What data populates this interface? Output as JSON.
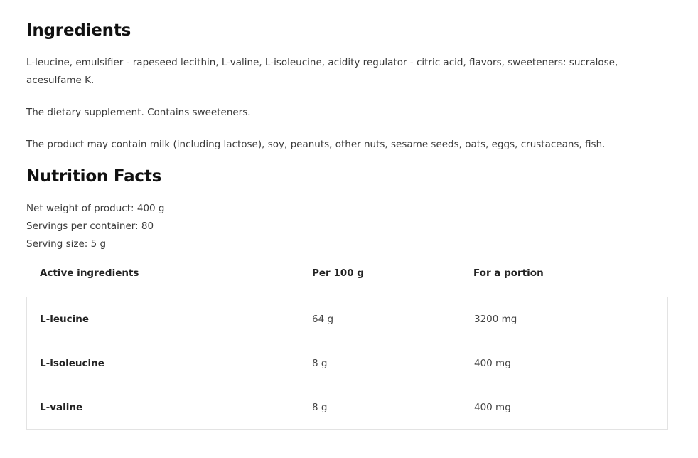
{
  "ingredients": {
    "title": "Ingredients",
    "paragraphs": [
      "L-leucine, emulsifier - rapeseed lecithin, L-valine, L-isoleucine, acidity regulator - citric acid, flavors, sweeteners: sucralose, acesulfame K.",
      "The dietary supplement. Contains sweeteners.",
      "The product may contain milk (including lactose), soy, peanuts, other nuts, sesame seeds, oats, eggs, crustaceans, fish."
    ]
  },
  "nutrition": {
    "title": "Nutrition Facts",
    "meta": [
      "Net weight of product: 400 g",
      "Servings per container: 80",
      "Serving size: 5 g"
    ],
    "headers": [
      "Active ingredients",
      "Per 100 g",
      "For a portion"
    ],
    "rows": [
      [
        "L-leucine",
        "64 g",
        "3200 mg"
      ],
      [
        "L-isoleucine",
        "8 g",
        "400 mg"
      ],
      [
        "L-valine",
        "8 g",
        "400 mg"
      ]
    ]
  }
}
